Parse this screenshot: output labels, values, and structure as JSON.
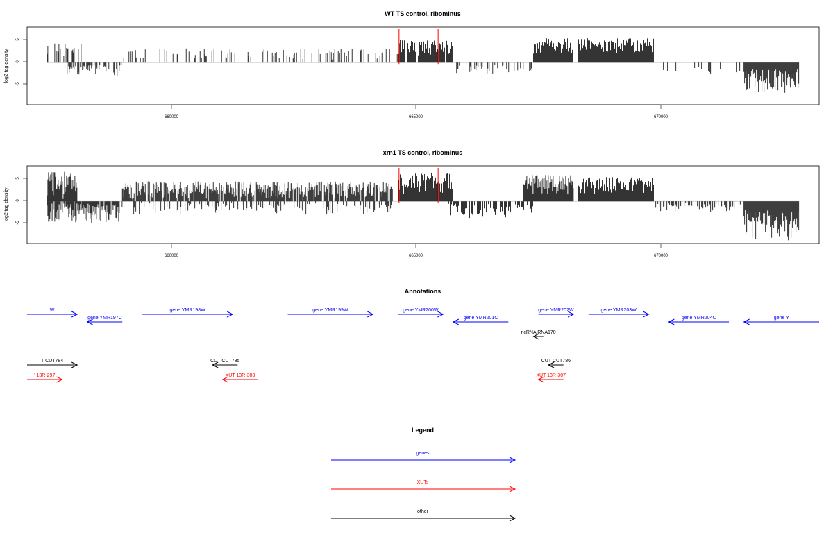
{
  "colors": {
    "genes": "#0000ff",
    "xuts": "#ff0000",
    "other": "#000000",
    "baseline": "#bbbbbb",
    "highlight": "#ff0000"
  },
  "chart_data": [
    {
      "type": "bar",
      "title": "WT TS control, ribominus",
      "ylabel": "log2 tag density",
      "xlim": [
        657300,
        673100
      ],
      "ylim": [
        -9.5,
        8
      ],
      "xticks": [
        "660000",
        "665000",
        "670000"
      ],
      "yticks": [
        "5",
        "0",
        "-5"
      ],
      "highlight_lines": [
        664720,
        665500
      ],
      "regions": [
        {
          "start": 657700,
          "end": 658400,
          "min": 1,
          "max": 4.5,
          "density": 0.35
        },
        {
          "start": 658100,
          "end": 659200,
          "min": -3,
          "max": -0.5,
          "density": 0.5
        },
        {
          "start": 659200,
          "end": 664700,
          "min": 0.5,
          "max": 3.2,
          "density": 0.18
        },
        {
          "start": 664700,
          "end": 665800,
          "min": 1.5,
          "max": 5.2,
          "density": 0.9
        },
        {
          "start": 665800,
          "end": 667400,
          "min": -2.5,
          "max": -0.5,
          "density": 0.3
        },
        {
          "start": 667400,
          "end": 668200,
          "min": 2,
          "max": 5.5,
          "density": 1.0
        },
        {
          "start": 668300,
          "end": 669800,
          "min": 2,
          "max": 5.5,
          "density": 1.0
        },
        {
          "start": 669800,
          "end": 671600,
          "min": -3,
          "max": -0.5,
          "density": 0.08
        },
        {
          "start": 671600,
          "end": 672700,
          "min": -7,
          "max": -1.5,
          "density": 1.0
        }
      ]
    },
    {
      "type": "bar",
      "title": "xrn1 TS control, ribominus",
      "ylabel": "log2 tag density",
      "xlim": [
        657300,
        673100
      ],
      "ylim": [
        -9.5,
        8
      ],
      "xticks": [
        "660000",
        "665000",
        "670000"
      ],
      "yticks": [
        "5",
        "0",
        "-5"
      ],
      "highlight_lines": [
        664720,
        665500
      ],
      "regions": [
        {
          "start": 657700,
          "end": 658300,
          "min": 0.5,
          "max": 7,
          "density": 1.0
        },
        {
          "start": 657700,
          "end": 659200,
          "min": -5,
          "max": -0.5,
          "density": 0.9
        },
        {
          "start": 659200,
          "end": 664600,
          "min": 0.5,
          "max": 4.5,
          "density": 0.9
        },
        {
          "start": 659400,
          "end": 664600,
          "min": -3,
          "max": -0.3,
          "density": 0.3
        },
        {
          "start": 664700,
          "end": 665800,
          "min": 1.5,
          "max": 6.5,
          "density": 1.0
        },
        {
          "start": 665700,
          "end": 667400,
          "min": -4,
          "max": -0.5,
          "density": 0.6
        },
        {
          "start": 667200,
          "end": 668200,
          "min": 1.5,
          "max": 6,
          "density": 1.0
        },
        {
          "start": 668300,
          "end": 669800,
          "min": 1.5,
          "max": 5.5,
          "density": 1.0
        },
        {
          "start": 669800,
          "end": 671600,
          "min": -2.5,
          "max": -0.3,
          "density": 0.5
        },
        {
          "start": 671600,
          "end": 672700,
          "min": -9,
          "max": -2,
          "density": 1.0
        }
      ]
    }
  ],
  "annotations": {
    "title": "Annotations",
    "genes": [
      {
        "label": "W",
        "from": 657300,
        "to": 658300
      },
      {
        "label": "gene YMR197C",
        "from": 659200,
        "to": 658500
      },
      {
        "label": "gene YMR198W",
        "from": 659600,
        "to": 661400
      },
      {
        "label": "gene YMR199W",
        "from": 662500,
        "to": 664200
      },
      {
        "label": "gene YMR200W",
        "from": 664700,
        "to": 665600
      },
      {
        "label": "gene YMR201C",
        "from": 666900,
        "to": 665800
      },
      {
        "label": "gene YMR202W",
        "from": 667500,
        "to": 668200
      },
      {
        "label": "gene YMR203W",
        "from": 668500,
        "to": 669700
      },
      {
        "label": "gene YMR204C",
        "from": 671300,
        "to": 670100
      },
      {
        "label": "gene Y",
        "from": 673100,
        "to": 671600
      }
    ],
    "other": [
      {
        "label": "ncRNA RNA170",
        "from": 667600,
        "to": 667400
      },
      {
        "label": "T CUT784",
        "from": 657300,
        "to": 658300
      },
      {
        "label": "CUT CUT785",
        "from": 661500,
        "to": 661000
      },
      {
        "label": "CUT CUT786",
        "from": 668000,
        "to": 667700
      }
    ],
    "xuts": [
      {
        "label": "' 13R-297",
        "from": 657300,
        "to": 658000
      },
      {
        "label": "XUT 13R-303",
        "from": 661900,
        "to": 661200
      },
      {
        "label": "XUT 13R-307",
        "from": 668000,
        "to": 667500
      }
    ]
  },
  "legend": {
    "title": "Legend",
    "items": [
      {
        "label": "genes",
        "color": "#0000ff"
      },
      {
        "label": "XUTs",
        "color": "#ff0000"
      },
      {
        "label": "other",
        "color": "#000000"
      }
    ]
  }
}
